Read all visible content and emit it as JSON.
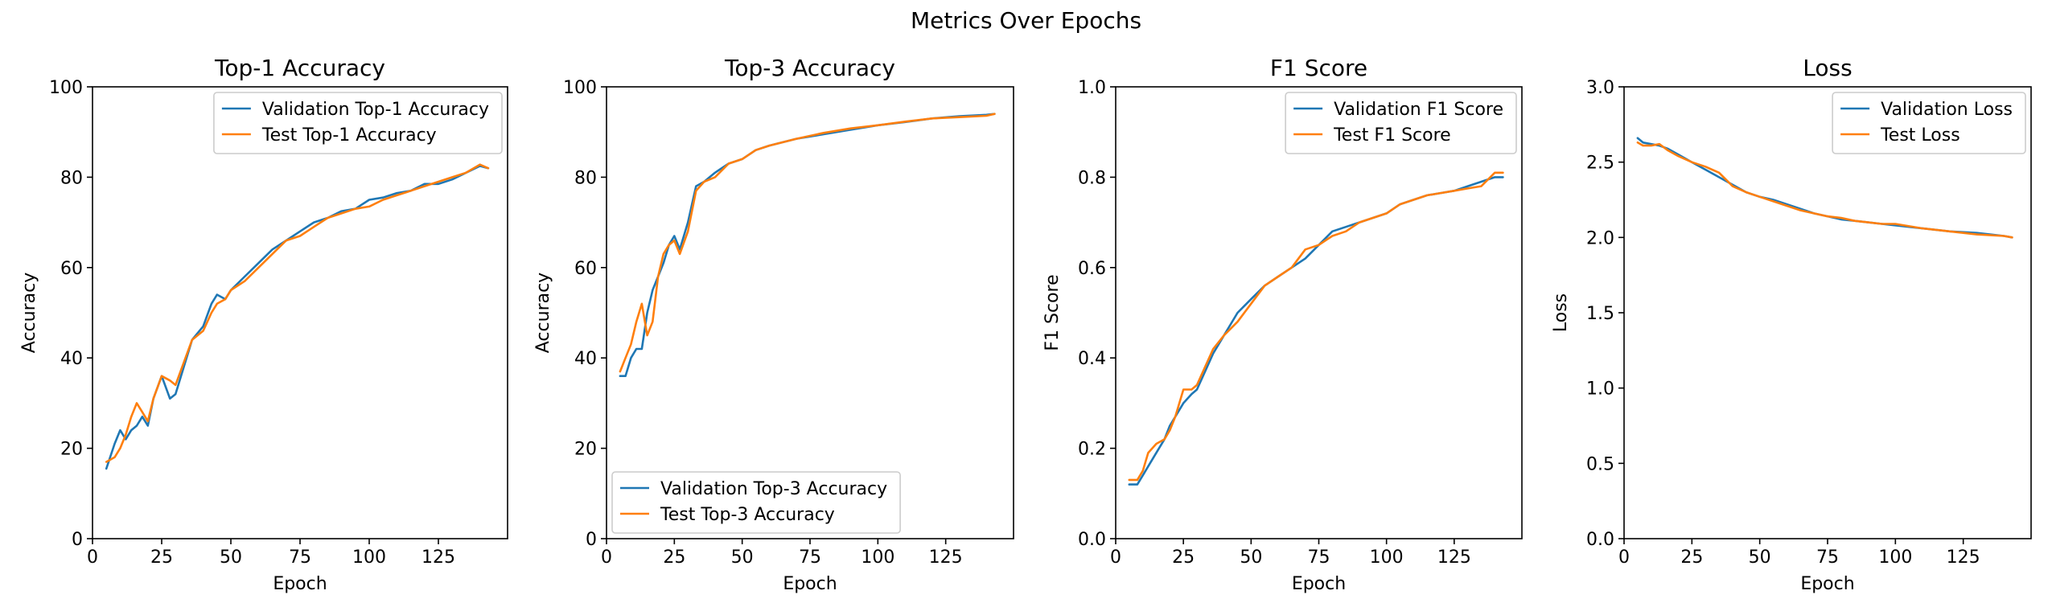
{
  "suptitle": "Metrics Over Epochs",
  "colors": {
    "validation": "#1f77b4",
    "test": "#ff7f0e"
  },
  "chart_data": [
    {
      "type": "line",
      "title": "Top-1 Accuracy",
      "xlabel": "Epoch",
      "ylabel": "Accuracy",
      "xlim": [
        0,
        150
      ],
      "ylim": [
        0,
        100
      ],
      "xticks": [
        0,
        25,
        50,
        75,
        100,
        125
      ],
      "yticks": [
        0,
        20,
        40,
        60,
        80,
        100
      ],
      "ytick_labels": [
        "0",
        "20",
        "40",
        "60",
        "80",
        "100"
      ],
      "legend_loc": "upper-right",
      "series": [
        {
          "name": "Validation Top-1 Accuracy",
          "color": "#1f77b4",
          "x": [
            5,
            8,
            10,
            12,
            14,
            16,
            18,
            20,
            22,
            25,
            28,
            30,
            33,
            36,
            40,
            43,
            45,
            48,
            50,
            55,
            60,
            65,
            70,
            75,
            80,
            85,
            90,
            95,
            100,
            105,
            110,
            115,
            120,
            125,
            130,
            135,
            140,
            143
          ],
          "y": [
            15.5,
            21,
            24,
            22,
            24,
            25,
            27,
            25,
            31,
            36,
            31,
            32,
            38,
            44,
            47,
            52,
            54,
            53,
            55,
            58,
            61,
            64,
            66,
            68,
            70,
            71,
            72.5,
            73,
            75,
            75.5,
            76.5,
            77,
            78.5,
            78.5,
            79.5,
            81,
            82.5,
            82
          ]
        },
        {
          "name": "Test Top-1 Accuracy",
          "color": "#ff7f0e",
          "x": [
            5,
            8,
            10,
            12,
            14,
            16,
            18,
            20,
            22,
            25,
            28,
            30,
            33,
            36,
            40,
            43,
            45,
            48,
            50,
            55,
            60,
            65,
            70,
            75,
            80,
            85,
            90,
            95,
            100,
            105,
            110,
            115,
            120,
            125,
            130,
            135,
            140,
            143
          ],
          "y": [
            17,
            18,
            20,
            23,
            27,
            30,
            28,
            26,
            31,
            36,
            35,
            34,
            39,
            44,
            46,
            50,
            52,
            53,
            55,
            57,
            60,
            63,
            66,
            67,
            69,
            71,
            72,
            73,
            73.5,
            75,
            76,
            77,
            78,
            79,
            80,
            81,
            82.8,
            82
          ]
        }
      ]
    },
    {
      "type": "line",
      "title": "Top-3 Accuracy",
      "xlabel": "Epoch",
      "ylabel": "Accuracy",
      "xlim": [
        0,
        150
      ],
      "ylim": [
        0,
        100
      ],
      "xticks": [
        0,
        25,
        50,
        75,
        100,
        125
      ],
      "yticks": [
        0,
        20,
        40,
        60,
        80,
        100
      ],
      "ytick_labels": [
        "0",
        "20",
        "40",
        "60",
        "80",
        "100"
      ],
      "legend_loc": "lower-left",
      "series": [
        {
          "name": "Validation Top-3 Accuracy",
          "color": "#1f77b4",
          "x": [
            5,
            7,
            9,
            11,
            13,
            15,
            17,
            19,
            21,
            23,
            25,
            27,
            30,
            33,
            36,
            40,
            45,
            50,
            55,
            60,
            70,
            80,
            90,
            100,
            110,
            120,
            130,
            140,
            143
          ],
          "y": [
            36,
            36,
            40,
            42,
            42,
            50,
            55,
            58,
            61,
            65,
            67,
            64,
            70,
            78,
            79,
            81,
            83,
            84,
            86,
            87,
            88.5,
            89.5,
            90.5,
            91.5,
            92.2,
            93,
            93.5,
            93.8,
            94
          ]
        },
        {
          "name": "Test Top-3 Accuracy",
          "color": "#ff7f0e",
          "x": [
            5,
            7,
            9,
            11,
            13,
            15,
            17,
            19,
            21,
            23,
            25,
            27,
            30,
            33,
            36,
            40,
            45,
            50,
            55,
            60,
            70,
            80,
            90,
            100,
            110,
            120,
            130,
            140,
            143
          ],
          "y": [
            37,
            40,
            43,
            48,
            52,
            45,
            48,
            58,
            63,
            65,
            66,
            63,
            68,
            77,
            79,
            80,
            83,
            84,
            86,
            87,
            88.5,
            89.8,
            90.8,
            91.5,
            92.3,
            93,
            93.3,
            93.6,
            94
          ]
        }
      ]
    },
    {
      "type": "line",
      "title": "F1 Score",
      "xlabel": "Epoch",
      "ylabel": "F1 Score",
      "xlim": [
        0,
        150
      ],
      "ylim": [
        0,
        1
      ],
      "xticks": [
        0,
        25,
        50,
        75,
        100,
        125
      ],
      "yticks": [
        0,
        0.2,
        0.4,
        0.6,
        0.8,
        1.0
      ],
      "ytick_labels": [
        "0.0",
        "0.2",
        "0.4",
        "0.6",
        "0.8",
        "1.0"
      ],
      "legend_loc": "upper-right",
      "series": [
        {
          "name": "Validation F1 Score",
          "color": "#1f77b4",
          "x": [
            5,
            8,
            10,
            12,
            15,
            18,
            20,
            22,
            25,
            28,
            30,
            33,
            36,
            40,
            45,
            50,
            55,
            60,
            65,
            70,
            75,
            80,
            85,
            90,
            95,
            100,
            105,
            110,
            115,
            120,
            125,
            130,
            135,
            140,
            143
          ],
          "y": [
            0.12,
            0.12,
            0.14,
            0.16,
            0.19,
            0.22,
            0.25,
            0.27,
            0.3,
            0.32,
            0.33,
            0.37,
            0.41,
            0.45,
            0.5,
            0.53,
            0.56,
            0.58,
            0.6,
            0.62,
            0.65,
            0.68,
            0.69,
            0.7,
            0.71,
            0.72,
            0.74,
            0.75,
            0.76,
            0.765,
            0.77,
            0.78,
            0.79,
            0.8,
            0.8
          ]
        },
        {
          "name": "Test F1 Score",
          "color": "#ff7f0e",
          "x": [
            5,
            8,
            10,
            12,
            15,
            18,
            20,
            22,
            25,
            28,
            30,
            33,
            36,
            40,
            45,
            50,
            55,
            60,
            65,
            70,
            75,
            80,
            85,
            90,
            95,
            100,
            105,
            110,
            115,
            120,
            125,
            130,
            135,
            140,
            143
          ],
          "y": [
            0.13,
            0.13,
            0.15,
            0.19,
            0.21,
            0.22,
            0.24,
            0.27,
            0.33,
            0.33,
            0.34,
            0.38,
            0.42,
            0.45,
            0.48,
            0.52,
            0.56,
            0.58,
            0.6,
            0.64,
            0.65,
            0.67,
            0.68,
            0.7,
            0.71,
            0.72,
            0.74,
            0.75,
            0.76,
            0.765,
            0.77,
            0.775,
            0.78,
            0.81,
            0.81
          ]
        }
      ]
    },
    {
      "type": "line",
      "title": "Loss",
      "xlabel": "Epoch",
      "ylabel": "Loss",
      "xlim": [
        0,
        150
      ],
      "ylim": [
        0,
        3
      ],
      "xticks": [
        0,
        25,
        50,
        75,
        100,
        125
      ],
      "yticks": [
        0,
        0.5,
        1.0,
        1.5,
        2.0,
        2.5,
        3.0
      ],
      "ytick_labels": [
        "0.0",
        "0.5",
        "1.0",
        "1.5",
        "2.0",
        "2.5",
        "3.0"
      ],
      "legend_loc": "upper-right",
      "series": [
        {
          "name": "Validation Loss",
          "color": "#1f77b4",
          "x": [
            5,
            7,
            10,
            13,
            16,
            20,
            25,
            30,
            35,
            40,
            45,
            50,
            55,
            60,
            65,
            70,
            75,
            80,
            85,
            90,
            95,
            100,
            110,
            120,
            130,
            140,
            143
          ],
          "y": [
            2.66,
            2.63,
            2.62,
            2.61,
            2.59,
            2.55,
            2.5,
            2.45,
            2.4,
            2.35,
            2.3,
            2.27,
            2.25,
            2.22,
            2.19,
            2.16,
            2.14,
            2.12,
            2.11,
            2.1,
            2.09,
            2.08,
            2.06,
            2.04,
            2.03,
            2.01,
            2.0
          ]
        },
        {
          "name": "Test Loss",
          "color": "#ff7f0e",
          "x": [
            5,
            7,
            10,
            13,
            16,
            20,
            25,
            30,
            35,
            40,
            45,
            50,
            55,
            60,
            65,
            70,
            75,
            80,
            85,
            90,
            95,
            100,
            110,
            120,
            130,
            140,
            143
          ],
          "y": [
            2.63,
            2.61,
            2.61,
            2.62,
            2.58,
            2.54,
            2.5,
            2.47,
            2.43,
            2.34,
            2.3,
            2.27,
            2.24,
            2.21,
            2.18,
            2.16,
            2.14,
            2.13,
            2.11,
            2.1,
            2.09,
            2.09,
            2.06,
            2.04,
            2.02,
            2.01,
            2.0
          ]
        }
      ]
    }
  ]
}
